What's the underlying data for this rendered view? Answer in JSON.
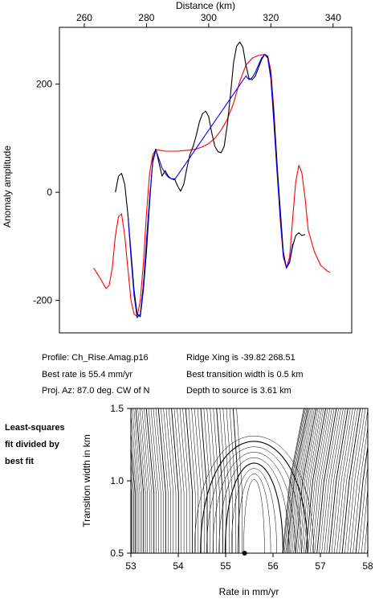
{
  "chart_data": [
    {
      "type": "line",
      "xlabel": "Distance (km)",
      "ylabel": "Anomaly amplitude",
      "xlim": [
        252,
        346
      ],
      "ylim": [
        -260,
        305
      ],
      "xticks": [
        260,
        280,
        300,
        320,
        340
      ],
      "yticks": [
        -200,
        0,
        200
      ],
      "x_axis_position": "top",
      "grid": false,
      "series": [
        {
          "color": "#000000",
          "points": [
            [
              270,
              0
            ],
            [
              271,
              30
            ],
            [
              272,
              35
            ],
            [
              273,
              15
            ],
            [
              274,
              -40
            ],
            [
              275,
              -110
            ],
            [
              276,
              -180
            ],
            [
              277,
              -225
            ],
            [
              278,
              -230
            ],
            [
              279,
              -180
            ],
            [
              280,
              -110
            ],
            [
              281,
              -20
            ],
            [
              282,
              60
            ],
            [
              283,
              80
            ],
            [
              284,
              55
            ],
            [
              285,
              30
            ],
            [
              286,
              40
            ],
            [
              287,
              30
            ],
            [
              288,
              25
            ],
            [
              289,
              25
            ],
            [
              290,
              12
            ],
            [
              291,
              2
            ],
            [
              292,
              15
            ],
            [
              293,
              45
            ],
            [
              294,
              70
            ],
            [
              295,
              85
            ],
            [
              296,
              105
            ],
            [
              297,
              130
            ],
            [
              298,
              145
            ],
            [
              299,
              150
            ],
            [
              300,
              140
            ],
            [
              301,
              110
            ],
            [
              302,
              85
            ],
            [
              303,
              75
            ],
            [
              304,
              73
            ],
            [
              305,
              85
            ],
            [
              306,
              125
            ],
            [
              307,
              180
            ],
            [
              308,
              240
            ],
            [
              309,
              270
            ],
            [
              310,
              278
            ],
            [
              311,
              268
            ],
            [
              312,
              235
            ],
            [
              313,
              210
            ],
            [
              314,
              208
            ],
            [
              315,
              215
            ],
            [
              316,
              230
            ],
            [
              317,
              245
            ],
            [
              318,
              255
            ],
            [
              319,
              250
            ],
            [
              320,
              215
            ],
            [
              321,
              140
            ],
            [
              322,
              50
            ],
            [
              323,
              -30
            ],
            [
              324,
              -110
            ],
            [
              325,
              -140
            ],
            [
              326,
              -130
            ],
            [
              327,
              -100
            ],
            [
              328,
              -80
            ],
            [
              329,
              -75
            ],
            [
              330,
              -80
            ],
            [
              331,
              -78
            ]
          ]
        },
        {
          "color": "#0000ff",
          "points": [
            [
              274,
              -40
            ],
            [
              275,
              -120
            ],
            [
              276,
              -190
            ],
            [
              277,
              -232
            ],
            [
              278,
              -225
            ],
            [
              279,
              -170
            ],
            [
              280,
              -90
            ],
            [
              281,
              -10
            ],
            [
              282,
              55
            ],
            [
              283,
              78
            ],
            [
              284,
              62
            ],
            [
              285,
              45
            ],
            [
              286,
              35
            ],
            [
              287,
              28
            ],
            [
              288,
              25
            ],
            [
              289,
              23
            ],
            [
              312,
              215
            ],
            [
              313,
              208
            ],
            [
              314,
              212
            ],
            [
              315,
              222
            ],
            [
              316,
              235
            ],
            [
              317,
              248
            ],
            [
              318,
              255
            ],
            [
              319,
              248
            ],
            [
              320,
              210
            ],
            [
              321,
              125
            ],
            [
              322,
              35
            ],
            [
              323,
              -45
            ],
            [
              324,
              -115
            ],
            [
              325,
              -140
            ],
            [
              326,
              -128
            ],
            [
              327,
              -95
            ]
          ]
        },
        {
          "color": "#ff0000",
          "points": [
            [
              263,
              -140
            ],
            [
              265,
              -158
            ],
            [
              267,
              -178
            ],
            [
              268,
              -172
            ],
            [
              269,
              -140
            ],
            [
              270,
              -80
            ],
            [
              271,
              -45
            ],
            [
              272,
              -40
            ],
            [
              273,
              -80
            ],
            [
              274,
              -140
            ],
            [
              275,
              -200
            ],
            [
              276,
              -225
            ],
            [
              277,
              -230
            ],
            [
              278,
              -200
            ],
            [
              279,
              -130
            ],
            [
              280,
              -40
            ],
            [
              281,
              35
            ],
            [
              282,
              70
            ],
            [
              283,
              78
            ],
            [
              284,
              78
            ],
            [
              286,
              76
            ],
            [
              288,
              76
            ],
            [
              290,
              76
            ],
            [
              292,
              77
            ],
            [
              294,
              78
            ],
            [
              296,
              80
            ],
            [
              298,
              84
            ],
            [
              300,
              90
            ],
            [
              302,
              100
            ],
            [
              304,
              115
            ],
            [
              306,
              135
            ],
            [
              308,
              165
            ],
            [
              310,
              205
            ],
            [
              312,
              235
            ],
            [
              314,
              248
            ],
            [
              316,
              253
            ],
            [
              318,
              255
            ],
            [
              319,
              252
            ],
            [
              320,
              225
            ],
            [
              321,
              150
            ],
            [
              322,
              50
            ],
            [
              323,
              -50
            ],
            [
              324,
              -120
            ],
            [
              325,
              -140
            ],
            [
              326,
              -120
            ],
            [
              327,
              -50
            ],
            [
              328,
              20
            ],
            [
              329,
              50
            ],
            [
              330,
              35
            ],
            [
              331,
              -10
            ],
            [
              332,
              -70
            ],
            [
              334,
              -110
            ],
            [
              336,
              -135
            ],
            [
              338,
              -145
            ],
            [
              339,
              -148
            ]
          ]
        }
      ]
    },
    {
      "type": "contour",
      "xlabel": "Rate in mm/yr",
      "ylabel": "Transition width in km",
      "xlim": [
        53,
        58
      ],
      "ylim": [
        0.5,
        1.5
      ],
      "xticks": [
        53,
        54,
        55,
        56,
        57,
        58
      ],
      "yticks": [
        0.5,
        1.0,
        1.5
      ],
      "best_fit_point": [
        55.4,
        0.5
      ],
      "note": "Least-squares fit divided by best fit"
    }
  ],
  "info": {
    "profile": "Profile: Ch_Rise.Amag.p16",
    "rate": "Best rate is 55.4 mm/yr",
    "az": "Proj. Az: 87.0 deg. CW of N",
    "ridge": "Ridge Xing is -39.82 268.51",
    "width": "Best transition width is 0.5 km",
    "depth": "Depth to source is   3.61 km"
  },
  "note_lines": [
    "Least-squares",
    "fit divided by",
    "best fit"
  ]
}
